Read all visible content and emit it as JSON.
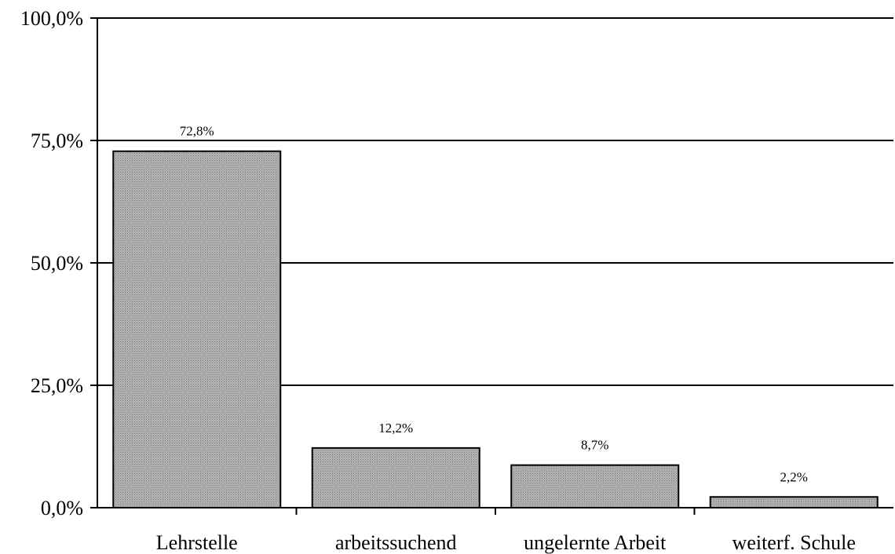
{
  "chart_data": {
    "type": "bar",
    "categories": [
      "Lehrstelle",
      "arbeitssuchend",
      "ungelernte Arbeit",
      "weiterf. Schule"
    ],
    "values": [
      72.8,
      12.2,
      8.7,
      2.2
    ],
    "data_labels": [
      "72,8%",
      "12,2%",
      "8,7%",
      "2,2%"
    ],
    "y_ticks": [
      0,
      25,
      50,
      75,
      100
    ],
    "y_tick_labels": [
      "0,0%",
      "25,0%",
      "50,0%",
      "75,0%",
      "100,0%"
    ],
    "ylim": [
      0,
      100
    ],
    "grid": true,
    "legend": "none",
    "bar_color": "#a6a6a6"
  }
}
